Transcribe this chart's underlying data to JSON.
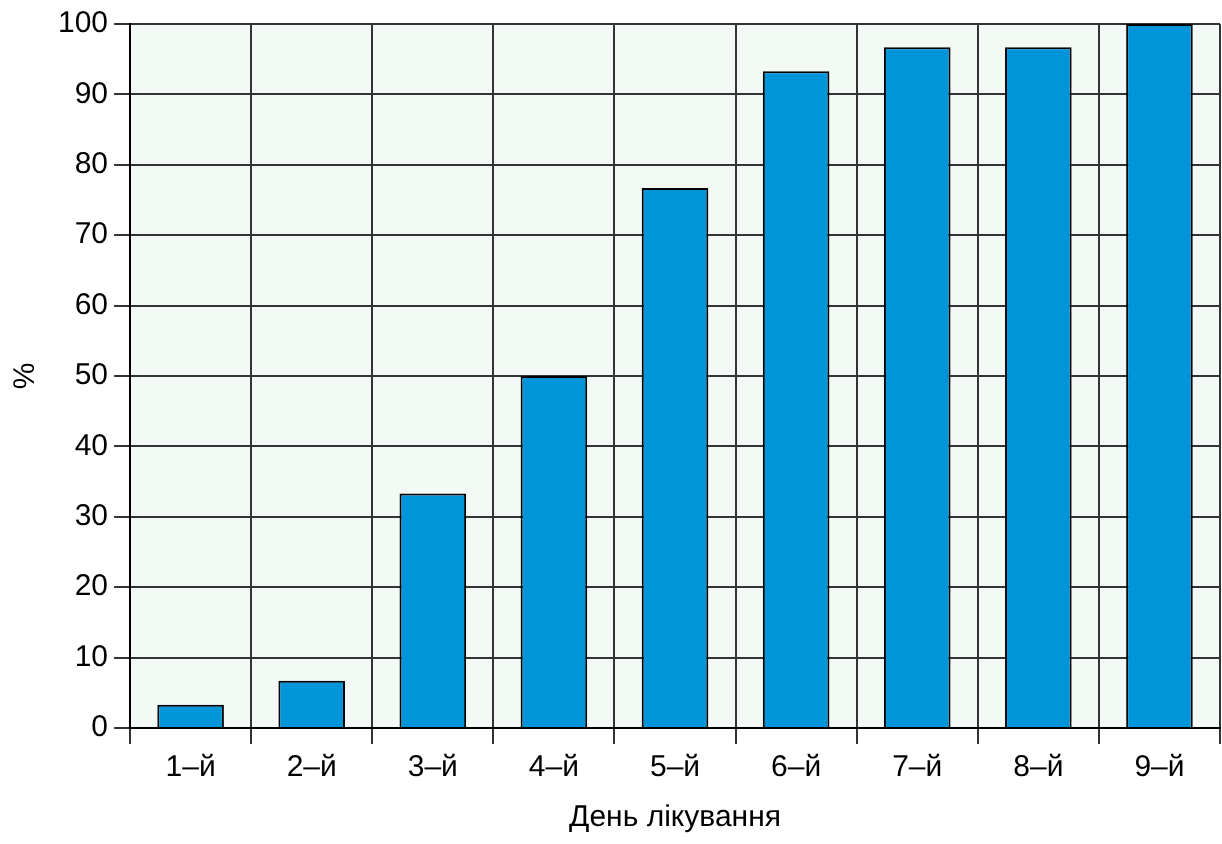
{
  "chart_data": {
    "type": "bar",
    "xlabel": "День лікування",
    "ylabel": "%",
    "categories": [
      "1–й",
      "2–й",
      "3–й",
      "4–й",
      "5–й",
      "6–й",
      "7–й",
      "8–й",
      "9–й"
    ],
    "values": [
      3.3,
      6.7,
      33.3,
      50,
      76.7,
      93.3,
      96.7,
      96.7,
      100
    ],
    "color": "#0095d9",
    "ylim": [
      0,
      100
    ],
    "yticks": [
      0,
      10,
      20,
      30,
      40,
      50,
      60,
      70,
      80,
      90,
      100
    ],
    "grid": true
  }
}
